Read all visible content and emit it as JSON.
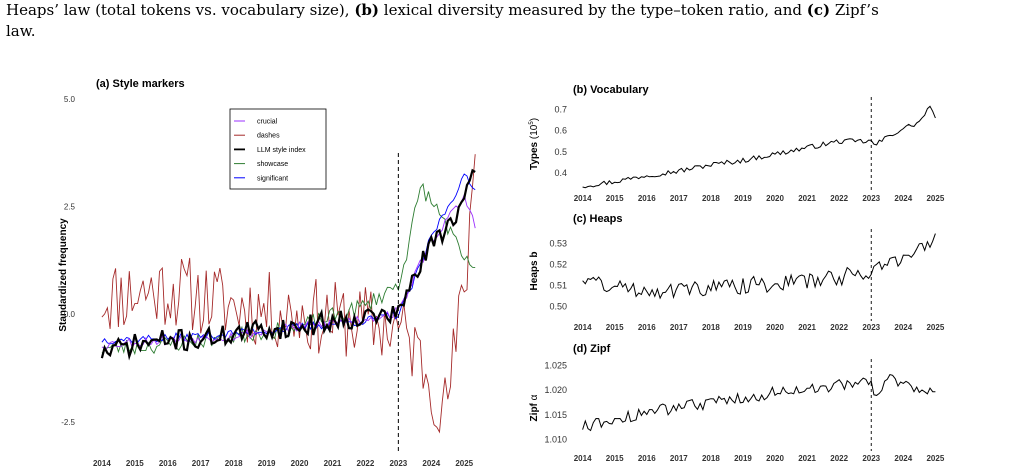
{
  "caption": {
    "line1_a": "Heaps’ law (total tokens vs. vocabulary size), ",
    "line1_b_label": "(b)",
    "line1_b_text": " lexical diversity measured by the type–token ratio, and ",
    "line1_c_label": "(c)",
    "line1_c_text": " Zipf’s",
    "line2": "law."
  },
  "chart_data": [
    {
      "type": "line",
      "title": "(a) Style markers",
      "xlabel": "",
      "ylabel": "Standardized frequency",
      "x_ticks": [
        "2014",
        "2015",
        "2016",
        "2017",
        "2018",
        "2019",
        "2020",
        "2021",
        "2022",
        "2023",
        "2024",
        "2025"
      ],
      "y_ticks": [
        "-2.5",
        "0.0",
        "2.5",
        "5.0"
      ],
      "ylim": [
        -3.2,
        5.0
      ],
      "xlim": [
        2013.7,
        2025.6
      ],
      "vline": 2023,
      "legend_position": "top-center",
      "series": [
        {
          "name": "crucial",
          "color": "#9b30ff"
        },
        {
          "name": "dashes",
          "color": "#a52a2a"
        },
        {
          "name": "LLM style index",
          "color": "#000000"
        },
        {
          "name": "showcase",
          "color": "#2e7d32"
        },
        {
          "name": "significant",
          "color": "#0000ff"
        }
      ],
      "anchors": {
        "llm": [
          [
            2014,
            -0.9
          ],
          [
            2015,
            -0.7
          ],
          [
            2016,
            -0.6
          ],
          [
            2017,
            -0.6
          ],
          [
            2018,
            -0.45
          ],
          [
            2019,
            -0.35
          ],
          [
            2020,
            -0.3
          ],
          [
            2021,
            -0.15
          ],
          [
            2022,
            -0.05
          ],
          [
            2023,
            0.0
          ],
          [
            2023.5,
            0.9
          ],
          [
            2024,
            1.6
          ],
          [
            2024.5,
            2.1
          ],
          [
            2025,
            2.6
          ],
          [
            2025.4,
            3.4
          ]
        ],
        "crucial": [
          [
            2014,
            -0.7
          ],
          [
            2016,
            -0.6
          ],
          [
            2018,
            -0.5
          ],
          [
            2020,
            -0.3
          ],
          [
            2022,
            -0.1
          ],
          [
            2023,
            0.05
          ],
          [
            2023.5,
            0.9
          ],
          [
            2024,
            1.7
          ],
          [
            2024.5,
            2.2
          ],
          [
            2025,
            2.7
          ],
          [
            2025.4,
            2.0
          ]
        ],
        "dashes": [
          [
            2014,
            0.4
          ],
          [
            2016,
            0.6
          ],
          [
            2018,
            0.2
          ],
          [
            2020,
            0.0
          ],
          [
            2022,
            -0.2
          ],
          [
            2023,
            -0.3
          ],
          [
            2023.5,
            -0.8
          ],
          [
            2024,
            -1.5
          ],
          [
            2024.4,
            -2.3
          ],
          [
            2024.8,
            -0.5
          ],
          [
            2025.1,
            1.3
          ],
          [
            2025.4,
            4.7
          ]
        ],
        "showcase": [
          [
            2014,
            -0.8
          ],
          [
            2016,
            -0.7
          ],
          [
            2018,
            -0.5
          ],
          [
            2020,
            -0.3
          ],
          [
            2022,
            0.2
          ],
          [
            2023,
            0.7
          ],
          [
            2023.3,
            1.6
          ],
          [
            2023.7,
            3.0
          ],
          [
            2024,
            2.6
          ],
          [
            2024.4,
            2.2
          ],
          [
            2025,
            1.2
          ],
          [
            2025.4,
            1.1
          ]
        ],
        "significant": [
          [
            2014,
            -0.6
          ],
          [
            2016,
            -0.55
          ],
          [
            2018,
            -0.45
          ],
          [
            2020,
            -0.3
          ],
          [
            2022,
            -0.15
          ],
          [
            2023,
            0.0
          ],
          [
            2023.5,
            0.8
          ],
          [
            2024,
            1.8
          ],
          [
            2024.5,
            2.5
          ],
          [
            2025,
            3.2
          ],
          [
            2025.4,
            2.8
          ]
        ]
      },
      "noise": {
        "llm": 0.25,
        "crucial": 0.12,
        "dashes": 0.9,
        "showcase": 0.2,
        "significant": 0.1
      }
    },
    {
      "type": "line",
      "title": "(b) Vocabulary",
      "ylabel": "Types (10⁵)",
      "ylabel_main": "Types",
      "ylabel_unit": "(10",
      "ylabel_exp": "5",
      "ylabel_close": ")",
      "x_ticks": [
        "2014",
        "2015",
        "2016",
        "2017",
        "2018",
        "2019",
        "2020",
        "2021",
        "2022",
        "2023",
        "2024",
        "2025"
      ],
      "y_ticks": [
        "0.4",
        "0.5",
        "0.6",
        "0.7"
      ],
      "ylim": [
        0.33,
        0.74
      ],
      "xlim": [
        2013.7,
        2025.3
      ],
      "vline": 2023,
      "anchors": [
        [
          2014,
          0.34
        ],
        [
          2015,
          0.36
        ],
        [
          2016,
          0.39
        ],
        [
          2017,
          0.41
        ],
        [
          2018,
          0.44
        ],
        [
          2019,
          0.46
        ],
        [
          2020,
          0.49
        ],
        [
          2021,
          0.52
        ],
        [
          2022,
          0.55
        ],
        [
          2023,
          0.55
        ],
        [
          2023.1,
          0.53
        ],
        [
          2023.6,
          0.58
        ],
        [
          2024,
          0.61
        ],
        [
          2024.5,
          0.64
        ],
        [
          2024.8,
          0.71
        ],
        [
          2025,
          0.67
        ]
      ],
      "noise": 0.012
    },
    {
      "type": "line",
      "title": "(c) Heaps",
      "ylabel": "Heaps b",
      "x_ticks": [
        "2014",
        "2015",
        "2016",
        "2017",
        "2018",
        "2019",
        "2020",
        "2021",
        "2022",
        "2023",
        "2024",
        "2025"
      ],
      "y_ticks": [
        "0.50",
        "0.51",
        "0.52",
        "0.53"
      ],
      "ylim": [
        0.495,
        0.535
      ],
      "xlim": [
        2013.7,
        2025.3
      ],
      "vline": 2023,
      "anchors": [
        [
          2014,
          0.514
        ],
        [
          2015,
          0.509
        ],
        [
          2016,
          0.508
        ],
        [
          2017,
          0.508
        ],
        [
          2018,
          0.509
        ],
        [
          2019,
          0.51
        ],
        [
          2020,
          0.511
        ],
        [
          2021,
          0.512
        ],
        [
          2022,
          0.514
        ],
        [
          2023,
          0.517
        ],
        [
          2023.5,
          0.521
        ],
        [
          2024,
          0.523
        ],
        [
          2024.5,
          0.527
        ],
        [
          2025,
          0.531
        ]
      ],
      "noise": 0.004
    },
    {
      "type": "line",
      "title": "(d) Zipf",
      "ylabel": "Zipf α",
      "ylabel_main": "Zipf",
      "ylabel_greek": "α",
      "x_ticks": [
        "2014",
        "2015",
        "2016",
        "2017",
        "2018",
        "2019",
        "2020",
        "2021",
        "2022",
        "2023",
        "2024",
        "2025"
      ],
      "y_ticks": [
        "1.010",
        "1.015",
        "1.020",
        "1.025"
      ],
      "ylim": [
        1.0085,
        1.0255
      ],
      "xlim": [
        2013.7,
        2025.3
      ],
      "vline": 2023,
      "anchors": [
        [
          2014,
          1.0125
        ],
        [
          2015,
          1.014
        ],
        [
          2016,
          1.0155
        ],
        [
          2017,
          1.0165
        ],
        [
          2018,
          1.0175
        ],
        [
          2019,
          1.0185
        ],
        [
          2020,
          1.0195
        ],
        [
          2021,
          1.0205
        ],
        [
          2022,
          1.021
        ],
        [
          2023,
          1.0215
        ],
        [
          2023.05,
          1.018
        ],
        [
          2023.5,
          1.0225
        ],
        [
          2024,
          1.0215
        ],
        [
          2024.5,
          1.0205
        ],
        [
          2025,
          1.02
        ]
      ],
      "noise": 0.0012
    }
  ]
}
